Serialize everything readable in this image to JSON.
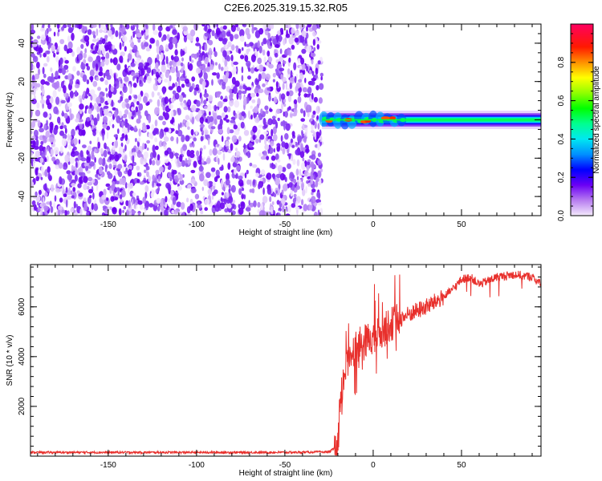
{
  "title": "C2E6.2025.319.15.32.R05",
  "chart_data": [
    {
      "type": "heatmap",
      "xlabel": "Height of straight line (km)",
      "ylabel": "Frequency (Hz)",
      "xlim": [
        -194,
        95
      ],
      "ylim": [
        -50,
        50
      ],
      "x_ticks": [
        -150,
        -100,
        -50,
        0,
        50
      ],
      "y_ticks": [
        -40,
        -20,
        0,
        20,
        40
      ],
      "colorbar": {
        "label": "Normalized spectral amplitude",
        "range": [
          0,
          1
        ],
        "ticks": [
          0.0,
          0.2,
          0.4,
          0.6,
          0.8
        ],
        "tick_labels": [
          "0.0",
          "0.2",
          "0.4",
          "0.6",
          "0.8"
        ]
      },
      "noise_region_x": [
        -194,
        -29
      ],
      "signal_start_x": -29,
      "signal_center_freq": 0,
      "signal_halfwidth_freq": 3,
      "grid": false
    },
    {
      "type": "line",
      "xlabel": "Height of straight line (km)",
      "ylabel": "SNR (10 * v/v)",
      "xlim": [
        -194,
        95
      ],
      "ylim": [
        0,
        7700
      ],
      "x_ticks": [
        -150,
        -100,
        -50,
        0,
        50
      ],
      "y_ticks": [
        2000,
        4000,
        6000
      ],
      "color": "#e8302c",
      "series_profile": {
        "x": [
          -194,
          -150,
          -100,
          -50,
          -25,
          -20,
          -18,
          -15,
          -12,
          -10,
          -5,
          0,
          5,
          10,
          15,
          20,
          30,
          40,
          45,
          50,
          55,
          60,
          70,
          80,
          90,
          95
        ],
        "y": [
          150,
          150,
          150,
          150,
          170,
          400,
          2500,
          3800,
          4200,
          4400,
          4600,
          4800,
          5000,
          5300,
          5500,
          5700,
          6000,
          6400,
          6700,
          7100,
          7200,
          6900,
          7200,
          7300,
          7200,
          6900
        ]
      },
      "grid": false
    }
  ]
}
